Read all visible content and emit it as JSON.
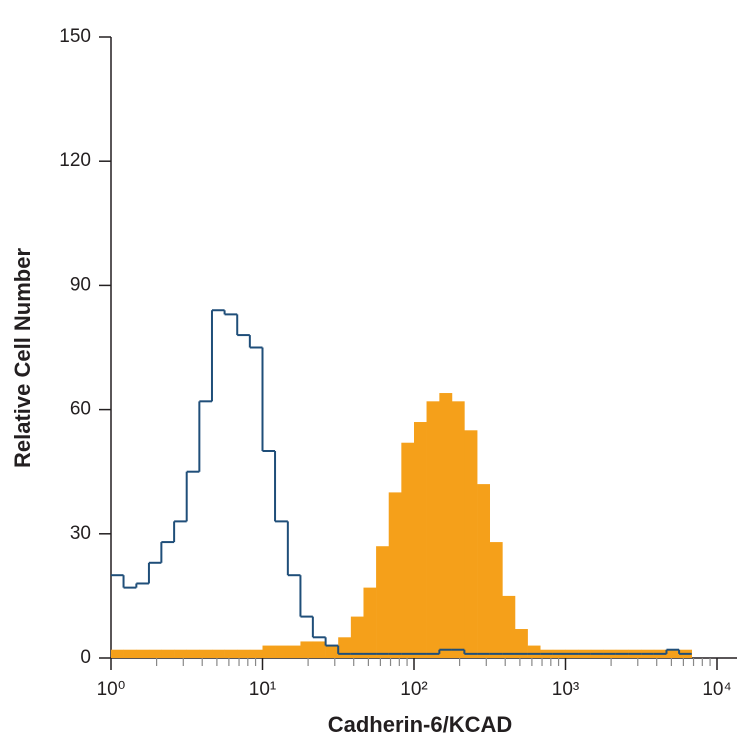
{
  "chart_data": {
    "type": "histogram",
    "xlabel": "Cadherin-6/KCAD",
    "ylabel": "Relative Cell Number",
    "xscale": "log",
    "xlim": [
      1,
      10000
    ],
    "ylim": [
      0,
      150
    ],
    "xticks": [
      {
        "value": 1,
        "label": "10⁰"
      },
      {
        "value": 10,
        "label": "10¹"
      },
      {
        "value": 100,
        "label": "10²"
      },
      {
        "value": 1000,
        "label": "10³"
      },
      {
        "value": 10000,
        "label": "10⁴"
      }
    ],
    "xminorticks": [
      2,
      3,
      4,
      5,
      6,
      7,
      8,
      9,
      20,
      30,
      40,
      50,
      60,
      70,
      80,
      90,
      200,
      300,
      400,
      500,
      600,
      700,
      800,
      900,
      2000,
      3000,
      4000,
      5000,
      6000,
      7000,
      8000,
      9000
    ],
    "yticks": [
      0,
      30,
      60,
      90,
      120,
      150
    ],
    "bins": [
      1,
      1.21,
      1.47,
      1.78,
      2.15,
      2.61,
      3.16,
      3.83,
      4.64,
      5.62,
      6.81,
      8.25,
      10,
      12.1,
      14.7,
      17.8,
      21.5,
      26.1,
      31.6,
      38.3,
      46.4,
      56.2,
      68.1,
      82.5,
      100,
      121,
      147,
      178,
      215,
      261,
      316,
      383,
      464,
      562,
      681,
      825,
      1000,
      1210,
      1470,
      1780,
      2150,
      2610,
      3160,
      3830,
      4640,
      5620,
      6810
    ],
    "series": [
      {
        "color": "#f5a01a",
        "style": "filled",
        "values": [
          2,
          2,
          2,
          2,
          2,
          2,
          2,
          2,
          2,
          2,
          2,
          2,
          3,
          3,
          3,
          4,
          4,
          3,
          5,
          10,
          17,
          27,
          40,
          52,
          57,
          62,
          64,
          62,
          55,
          42,
          28,
          15,
          7,
          3,
          2,
          2,
          2,
          2,
          2,
          2,
          2,
          2,
          2,
          2,
          2,
          2
        ]
      },
      {
        "color": "#1f4e79",
        "style": "outline",
        "values": [
          20,
          17,
          18,
          23,
          28,
          33,
          45,
          62,
          84,
          83,
          78,
          75,
          50,
          33,
          20,
          10,
          5,
          3,
          1,
          1,
          1,
          1,
          1,
          1,
          1,
          1,
          2,
          2,
          1,
          1,
          1,
          1,
          1,
          1,
          1,
          1,
          1,
          1,
          1,
          1,
          1,
          1,
          1,
          1,
          2,
          1
        ]
      }
    ]
  }
}
